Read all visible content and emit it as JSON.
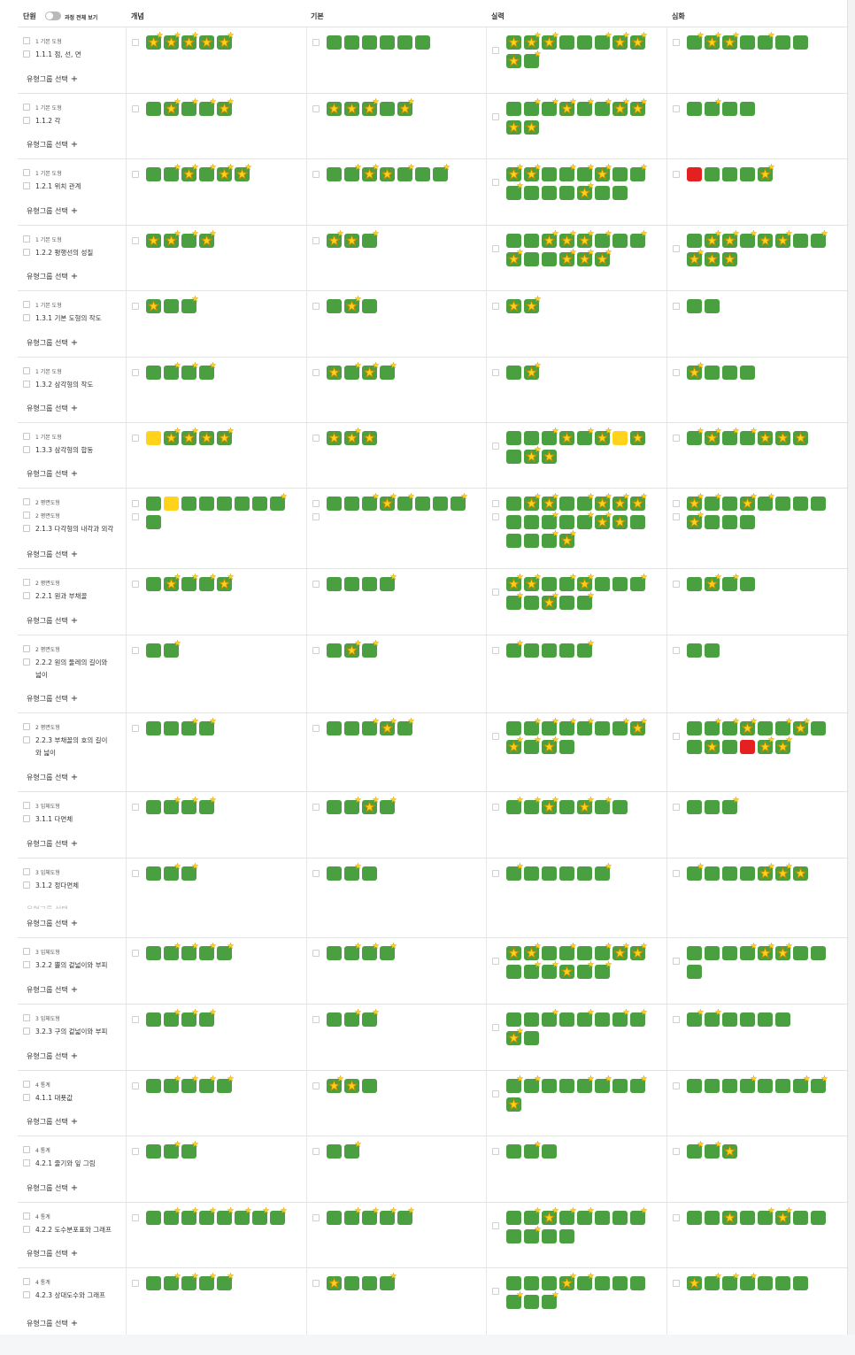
{
  "header": {
    "unit": "단원",
    "toggle_label": "과정 전체 보기",
    "toggle_on": false,
    "levels": [
      "개념",
      "기본",
      "실력",
      "심화"
    ]
  },
  "group_select_label": "유형그룹 선택",
  "group_select_plus": "+",
  "colors": {
    "green": "#4aa041",
    "yellow": "#ffd21c",
    "red": "#e52020",
    "star": "#ffd21c"
  },
  "rows": [
    {
      "chapters": [
        "1 기본 도형"
      ],
      "section": "1.1.1 점, 선, 면",
      "cells": [
        [
          "scs",
          "sc",
          "sc",
          "s",
          "sc"
        ],
        [
          "g",
          "g",
          "g",
          "g",
          "g",
          "g"
        ],
        [
          "s",
          "sc",
          "sc",
          "g",
          "g",
          "gc",
          "sc",
          "sc",
          "s",
          "gc"
        ],
        [
          "gc",
          "sc",
          "sc",
          "g",
          "gc",
          "g",
          "g"
        ]
      ]
    },
    {
      "chapters": [
        "1 기본 도형"
      ],
      "section": "1.1.2 각",
      "cells": [
        [
          "g",
          "sc",
          "gc",
          "gc",
          "sc"
        ],
        [
          "s",
          "s",
          "sc",
          "g",
          "sc"
        ],
        [
          "g",
          "gc",
          "gc",
          "sc",
          "gc",
          "gc",
          "sc",
          "sc",
          "s",
          "s"
        ],
        [
          "g",
          "gc",
          "g",
          "g"
        ]
      ]
    },
    {
      "chapters": [
        "1 기본 도형"
      ],
      "section": "1.2.1 위치 관계",
      "cells": [
        [
          "g",
          "gc",
          "sc",
          "gc",
          "sc",
          "sc"
        ],
        [
          "g",
          "gc",
          "sc",
          "s",
          "gc",
          "g",
          "gc"
        ],
        [
          "sc",
          "sc",
          "g",
          "gc",
          "gc",
          "sc",
          "g",
          "gc",
          "gc",
          "g",
          "g",
          "g",
          "sc",
          "g",
          "g"
        ],
        [
          "r",
          "g",
          "g",
          "g",
          "sc"
        ]
      ]
    },
    {
      "chapters": [
        "1 기본 도형"
      ],
      "section": "1.2.2 평행선의 성질",
      "cells": [
        [
          "s",
          "sc",
          "gc",
          "sc"
        ],
        [
          "sc",
          "s",
          "gc"
        ],
        [
          "g",
          "g",
          "sc",
          "sc",
          "sc",
          "gc",
          "g",
          "gc",
          "sc",
          "g",
          "g",
          "sc",
          "sc",
          "sc"
        ],
        [
          "g",
          "sc",
          "sc",
          "gc",
          "s",
          "sc",
          "g",
          "gc",
          "sc",
          "s",
          "s"
        ]
      ]
    },
    {
      "chapters": [
        "1 기본 도형"
      ],
      "section": "1.3.1 기본 도형의 작도",
      "cells": [
        [
          "s",
          "g",
          "gc"
        ],
        [
          "g",
          "sc",
          "g"
        ],
        [
          "s",
          "sc"
        ],
        [
          "g",
          "g"
        ]
      ]
    },
    {
      "chapters": [
        "1 기본 도형"
      ],
      "section": "1.3.2 삼각형의 작도",
      "cells": [
        [
          "g",
          "gc",
          "gc",
          "gc"
        ],
        [
          "s",
          "gc",
          "sc",
          "gc"
        ],
        [
          "g",
          "sc"
        ],
        [
          "sc",
          "g",
          "g",
          "g"
        ]
      ]
    },
    {
      "chapters": [
        "1 기본 도형"
      ],
      "section": "1.3.3 삼각형의 합동",
      "cells": [
        [
          "y",
          "sc",
          "sc",
          "s",
          "sc"
        ],
        [
          "s",
          "sc",
          "s"
        ],
        [
          "g",
          "g",
          "gc",
          "s",
          "gc",
          "sc",
          "y",
          "s",
          "g",
          "sc",
          "s"
        ],
        [
          "gc",
          "sc",
          "gc",
          "gc",
          "s",
          "s",
          "s"
        ]
      ]
    },
    {
      "chapters": [
        "2 평면도형",
        "2 평면도형"
      ],
      "section": "2.1.3 다각형의 내각과 외각",
      "two": true,
      "cells": [
        [
          "g",
          "y",
          "g",
          "g",
          "g",
          "g",
          "g",
          "gc",
          "g"
        ],
        [
          "g",
          "g",
          "gc",
          "sc",
          "gc",
          "g",
          "g",
          "gc"
        ],
        [
          "g",
          "sc",
          "sc",
          "g",
          "gc",
          "sc",
          "sc",
          "sc",
          "g",
          "g",
          "gc",
          "g",
          "gc",
          "sc",
          "s",
          "g",
          "g",
          "g",
          "gc",
          "sc"
        ],
        [
          "sc",
          "gc",
          "g",
          "sc",
          "gc",
          "g",
          "g",
          "g",
          "sc",
          "g",
          "g",
          "g"
        ]
      ]
    },
    {
      "chapters": [
        "2 평면도형"
      ],
      "section": "2.2.1 원과 부채꼴",
      "cells": [
        [
          "g",
          "sc",
          "gc",
          "gc",
          "sc"
        ],
        [
          "g",
          "g",
          "g",
          "gc"
        ],
        [
          "sc",
          "sc",
          "g",
          "gc",
          "sc",
          "g",
          "g",
          "gc",
          "gc",
          "g",
          "sc",
          "g",
          "gc"
        ],
        [
          "g",
          "sc",
          "gc",
          "g"
        ]
      ]
    },
    {
      "chapters": [
        "2 평면도형"
      ],
      "section": "2.2.2 원의 둘레의 길이와",
      "section2": "넓이",
      "cells": [
        [
          "g",
          "gc"
        ],
        [
          "g",
          "sc",
          "gc"
        ],
        [
          "gc",
          "g",
          "g",
          "g",
          "gc"
        ],
        [
          "g",
          "g"
        ]
      ]
    },
    {
      "chapters": [
        "2 평면도형"
      ],
      "section": "2.2.3 부채꼴의 호의 길이",
      "section2": "와 넓이",
      "cells": [
        [
          "g",
          "g",
          "gc",
          "gc"
        ],
        [
          "g",
          "g",
          "gc",
          "sc",
          "gc"
        ],
        [
          "g",
          "gc",
          "gc",
          "gc",
          "gc",
          "g",
          "gc",
          "sc",
          "sc",
          "gc",
          "sc",
          "g"
        ],
        [
          "g",
          "gc",
          "gc",
          "sc",
          "g",
          "gc",
          "sc",
          "g",
          "g",
          "s",
          "g",
          "r",
          "sc",
          "sc"
        ]
      ]
    },
    {
      "chapters": [
        "3 입체도형"
      ],
      "section": "3.1.1 다면체",
      "cells": [
        [
          "g",
          "gc",
          "gc",
          "gc"
        ],
        [
          "g",
          "gc",
          "sc",
          "gc"
        ],
        [
          "gc",
          "gc",
          "sc",
          "g",
          "sc",
          "gc",
          "g"
        ],
        [
          "g",
          "g",
          "gc"
        ]
      ]
    },
    {
      "chapters": [
        "3 입체도형"
      ],
      "section": "3.1.2 정다면체",
      "ghost": true,
      "cells": [
        [
          "g",
          "gc",
          "gc"
        ],
        [
          "g",
          "gc",
          "g"
        ],
        [
          "gc",
          "g",
          "g",
          "g",
          "g",
          "gc"
        ],
        [
          "gc",
          "g",
          "g",
          "g",
          "sc",
          "sc",
          "s"
        ]
      ]
    },
    {
      "chapters": [
        "3 입체도형"
      ],
      "section": "3.2.2 뿔의 겉넓이와 부피",
      "cells": [
        [
          "g",
          "gc",
          "gc",
          "gc",
          "gc"
        ],
        [
          "g",
          "gc",
          "gc",
          "gc"
        ],
        [
          "s",
          "sc",
          "g",
          "gc",
          "g",
          "gc",
          "sc",
          "sc",
          "g",
          "gc",
          "gc",
          "s",
          "gc",
          "gc"
        ],
        [
          "g",
          "g",
          "g",
          "gc",
          "sc",
          "sc",
          "g",
          "g",
          "g"
        ]
      ]
    },
    {
      "chapters": [
        "3 입체도형"
      ],
      "section": "3.2.3 구의 겉넓이와 부피",
      "cells": [
        [
          "g",
          "gc",
          "gc",
          "gc"
        ],
        [
          "g",
          "gc",
          "gc"
        ],
        [
          "g",
          "g",
          "gc",
          "g",
          "gc",
          "g",
          "gc",
          "gc",
          "sc",
          "g"
        ],
        [
          "gc",
          "gc",
          "g",
          "g",
          "g",
          "g"
        ]
      ]
    },
    {
      "chapters": [
        "4 통계"
      ],
      "section": "4.1.1 대푯값",
      "cells": [
        [
          "g",
          "gc",
          "gc",
          "gc",
          "gc"
        ],
        [
          "sc",
          "s",
          "g"
        ],
        [
          "gc",
          "gc",
          "g",
          "g",
          "gc",
          "gc",
          "g",
          "gc",
          "s"
        ],
        [
          "g",
          "g",
          "g",
          "gc",
          "g",
          "g",
          "gc",
          "gc"
        ]
      ]
    },
    {
      "chapters": [
        "4 통계"
      ],
      "section": "4.2.1 줄기와 잎 그림",
      "cells": [
        [
          "g",
          "gc",
          "gc"
        ],
        [
          "g",
          "gc"
        ],
        [
          "g",
          "gc",
          "g"
        ],
        [
          "gc",
          "gc",
          "s"
        ]
      ]
    },
    {
      "chapters": [
        "4 통계"
      ],
      "section": "4.2.2 도수분포표와 그래프",
      "cells": [
        [
          "g",
          "gc",
          "gc",
          "gc",
          "gc",
          "gc",
          "gc",
          "gc"
        ],
        [
          "g",
          "gc",
          "gc",
          "gc",
          "gc"
        ],
        [
          "g",
          "gc",
          "sc",
          "gc",
          "gc",
          "g",
          "g",
          "gc",
          "g",
          "gc",
          "g",
          "g"
        ],
        [
          "g",
          "g",
          "s",
          "g",
          "gc",
          "sc",
          "g",
          "g"
        ]
      ]
    },
    {
      "chapters": [
        "4 통계"
      ],
      "section": "4.2.3 상대도수와 그래프",
      "cells": [
        [
          "g",
          "gc",
          "gc",
          "gc",
          "gc"
        ],
        [
          "s",
          "g",
          "g",
          "gc"
        ],
        [
          "g",
          "g",
          "g",
          "sc",
          "gc",
          "g",
          "g",
          "g",
          "gc",
          "g",
          "gc"
        ],
        [
          "s",
          "gc",
          "gc",
          "gc",
          "g",
          "g",
          "g"
        ]
      ]
    }
  ]
}
